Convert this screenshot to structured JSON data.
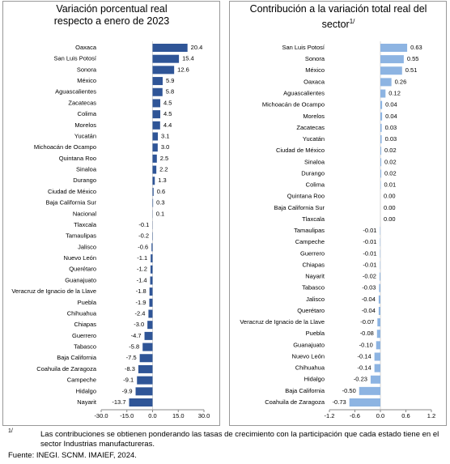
{
  "chart_data": [
    {
      "type": "barh",
      "title": "Variación porcentual real respecto a enero de 2023",
      "color": "#2f5597",
      "categories": [
        "Oaxaca",
        "San Luis Potosí",
        "Sonora",
        "México",
        "Aguascalientes",
        "Zacatecas",
        "Colima",
        "Morelos",
        "Yucatán",
        "Michoacán de Ocampo",
        "Quintana Roo",
        "Sinaloa",
        "Durango",
        "Ciudad de México",
        "Baja California Sur",
        "Nacional",
        "Tlaxcala",
        "Tamaulipas",
        "Jalisco",
        "Nuevo León",
        "Querétaro",
        "Guanajuato",
        "Veracruz de Ignacio de la Llave",
        "Puebla",
        "Chihuahua",
        "Chiapas",
        "Guerrero",
        "Tabasco",
        "Baja California",
        "Coahuila de Zaragoza",
        "Campeche",
        "Hidalgo",
        "Nayarit"
      ],
      "values": [
        20.4,
        15.4,
        12.6,
        5.9,
        5.8,
        4.5,
        4.5,
        4.4,
        3.1,
        3.0,
        2.5,
        2.2,
        1.3,
        0.6,
        0.3,
        0.1,
        -0.1,
        -0.2,
        -0.6,
        -1.1,
        -1.2,
        -1.4,
        -1.8,
        -1.9,
        -2.4,
        -3.0,
        -4.7,
        -5.8,
        -7.5,
        -8.3,
        -9.1,
        -9.9,
        -13.7
      ],
      "value_labels": [
        "20.4",
        "15.4",
        "12.6",
        "5.9",
        "5.8",
        "4.5",
        "4.5",
        "4.4",
        "3.1",
        "3.0",
        "2.5",
        "2.2",
        "1.3",
        "0.6",
        "0.3",
        "0.1",
        "-0.1",
        "-0.2",
        "-0.6",
        "-1.1",
        "-1.2",
        "-1.4",
        "-1.8",
        "-1.9",
        "-2.4",
        "-3.0",
        "-4.7",
        "-5.8",
        "-7.5",
        "-8.3",
        "-9.1",
        "-9.9",
        "-13.7"
      ],
      "xlim": [
        -30,
        30
      ],
      "xticks": [
        {
          "value": -30,
          "label": "-30.0"
        },
        {
          "value": -15,
          "label": "-15.0"
        },
        {
          "value": 0,
          "label": "0.0"
        },
        {
          "value": 15,
          "label": "15.0"
        },
        {
          "value": 30,
          "label": "30.0"
        }
      ]
    },
    {
      "type": "barh",
      "title": "Contribución a la variación total real del sector",
      "title_note": "1/",
      "color": "#8db4e2",
      "categories": [
        "San Luis Potosí",
        "Sonora",
        "México",
        "Oaxaca",
        "Aguascalientes",
        "Michoacán de Ocampo",
        "Morelos",
        "Zacatecas",
        "Yucatán",
        "Ciudad de México",
        "Sinaloa",
        "Durango",
        "Colima",
        "Quintana Roo",
        "Baja California Sur",
        "Tlaxcala",
        "Tamaulipas",
        "Campeche",
        "Guerrero",
        "Chiapas",
        "Nayarit",
        "Tabasco",
        "Jalisco",
        "Querétaro",
        "Veracruz de Ignacio de la Llave",
        "Puebla",
        "Guanajuato",
        "Nuevo León",
        "Chihuahua",
        "Hidalgo",
        "Baja California",
        "Coahuila de Zaragoza"
      ],
      "values": [
        0.63,
        0.55,
        0.51,
        0.26,
        0.12,
        0.04,
        0.04,
        0.03,
        0.03,
        0.02,
        0.02,
        0.02,
        0.01,
        0,
        0,
        0,
        -0.01,
        -0.01,
        -0.01,
        -0.01,
        -0.02,
        -0.03,
        -0.04,
        -0.04,
        -0.07,
        -0.08,
        -0.1,
        -0.14,
        -0.14,
        -0.23,
        -0.5,
        -0.73
      ],
      "value_labels": [
        "0.63",
        "0.55",
        "0.51",
        "0.26",
        "0.12",
        "0.04",
        "0.04",
        "0.03",
        "0.03",
        "0.02",
        "0.02",
        "0.02",
        "0.01",
        "0.00",
        "0.00",
        "0.00",
        "-0.01",
        "-0.01",
        "-0.01",
        "-0.01",
        "-0.02",
        "-0.03",
        "-0.04",
        "-0.04",
        "-0.07",
        "-0.08",
        "-0.10",
        "-0.14",
        "-0.14",
        "-0.23",
        "-0.50",
        "-0.73"
      ],
      "xlim": [
        -1.2,
        1.2
      ],
      "xticks": [
        -1.2,
        -0.6,
        {
          "value": 0,
          "label": "0.0"
        },
        0.6,
        1.2
      ]
    }
  ],
  "notes": {
    "marker": "1/",
    "text": "Las contribuciones se obtienen ponderando las tasas de crecimiento con la participación que cada estado tiene en el sector Industrias manufactureras.",
    "source": "Fuente: INEGI. SCNM. IMAIEF, 2024."
  }
}
